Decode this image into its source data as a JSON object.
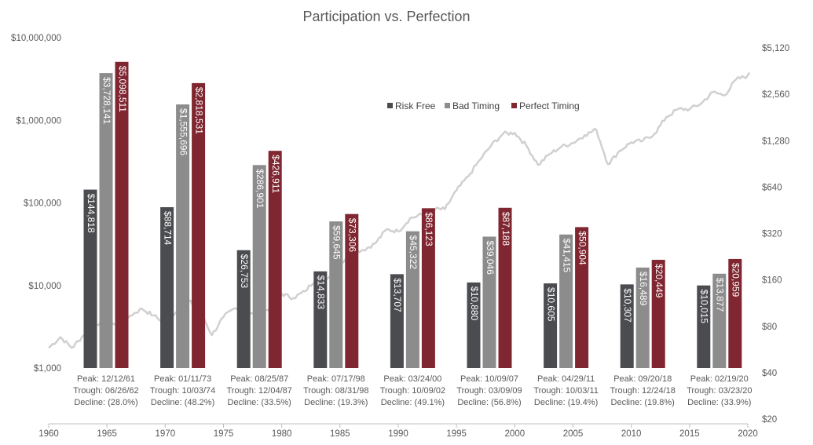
{
  "chart_data": {
    "type": "bar",
    "title": "Participation vs. Perfection",
    "colors": {
      "risk_free": "#4b4c50",
      "bad_timing": "#8c8c8c",
      "perfect_timing": "#7f2630",
      "line": "#d0d0d0"
    },
    "left_axis": {
      "scale": "log",
      "ticks": [
        "$1,000",
        "$10,000",
        "$100,000",
        "$1,000,000",
        "$10,000,000"
      ],
      "tick_values": [
        1000,
        10000,
        100000,
        1000000,
        10000000
      ],
      "ylim": [
        1000,
        10000000
      ]
    },
    "right_axis": {
      "scale": "log",
      "ticks": [
        "$20",
        "$40",
        "$80",
        "$160",
        "$320",
        "$640",
        "$1,280",
        "$2,560",
        "$5,120"
      ],
      "tick_values": [
        20,
        40,
        80,
        160,
        320,
        640,
        1280,
        2560,
        5120
      ],
      "ylim": [
        20,
        5120
      ]
    },
    "x_axis": {
      "ticks": [
        "1960",
        "1965",
        "1970",
        "1975",
        "1980",
        "1985",
        "1990",
        "1995",
        "2000",
        "2005",
        "2010",
        "2015",
        "2020"
      ],
      "range": [
        1960,
        2020
      ]
    },
    "legend": {
      "position": "top-right",
      "items": [
        "Risk Free",
        "Bad Timing",
        "Perfect Timing"
      ]
    },
    "groups": [
      {
        "peak": "Peak: 12/12/61",
        "trough": "Trough: 06/26/62",
        "decline": "Decline: (28.0%)",
        "risk_free": 144818,
        "bad_timing": 3728141,
        "perfect_timing": 5098511,
        "labels": [
          "$144,818",
          "$3,728,141",
          "$5,098,511"
        ]
      },
      {
        "peak": "Peak: 01/11/73",
        "trough": "Trough: 10/03/74",
        "decline": "Decline: (48.2%)",
        "risk_free": 88714,
        "bad_timing": 1555696,
        "perfect_timing": 2818531,
        "labels": [
          "$88,714",
          "$1,555,696",
          "$2,818,531"
        ]
      },
      {
        "peak": "Peak: 08/25/87",
        "trough": "Trough: 12/04/87",
        "decline": "Decline: (33.5%)",
        "risk_free": 26753,
        "bad_timing": 286901,
        "perfect_timing": 426911,
        "labels": [
          "$26,753",
          "$286,901",
          "$426,911"
        ]
      },
      {
        "peak": "Peak: 07/17/98",
        "trough": "Trough: 08/31/98",
        "decline": "Decline: (19.3%)",
        "risk_free": 14833,
        "bad_timing": 59645,
        "perfect_timing": 73306,
        "labels": [
          "$14,833",
          "$59,645",
          "$73,306"
        ]
      },
      {
        "peak": "Peak: 03/24/00",
        "trough": "Trough: 10/09/02",
        "decline": "Decline: (49.1%)",
        "risk_free": 13707,
        "bad_timing": 45322,
        "perfect_timing": 86123,
        "labels": [
          "$13,707",
          "$45,322",
          "$86,123"
        ]
      },
      {
        "peak": "Peak: 10/09/07",
        "trough": "Trough: 03/09/09",
        "decline": "Decline: (56.8%)",
        "risk_free": 10880,
        "bad_timing": 39046,
        "perfect_timing": 87188,
        "labels": [
          "$10,880",
          "$39,046",
          "$87,188"
        ]
      },
      {
        "peak": "Peak: 04/29/11",
        "trough": "Trough: 10/03/11",
        "decline": "Decline: (19.4%)",
        "risk_free": 10605,
        "bad_timing": 41415,
        "perfect_timing": 50904,
        "labels": [
          "$10,605",
          "$41,415",
          "$50,904"
        ]
      },
      {
        "peak": "Peak: 09/20/18",
        "trough": "Trough: 12/24/18",
        "decline": "Decline: (19.8%)",
        "risk_free": 10307,
        "bad_timing": 16489,
        "perfect_timing": 20449,
        "labels": [
          "$10,307",
          "$16,489",
          "$20,449"
        ]
      },
      {
        "peak": "Peak: 02/19/20",
        "trough": "Trough: 03/23/20",
        "decline": "Decline: (33.9%)",
        "risk_free": 10015,
        "bad_timing": 13877,
        "perfect_timing": 20959,
        "labels": [
          "$10,015",
          "$13,877",
          "$20,959"
        ]
      }
    ],
    "line_series": {
      "years": [
        1960,
        1961,
        1962,
        1963,
        1964,
        1965,
        1966,
        1967,
        1968,
        1969,
        1970,
        1971,
        1972,
        1973,
        1974,
        1975,
        1976,
        1977,
        1978,
        1979,
        1980,
        1981,
        1982,
        1983,
        1984,
        1985,
        1986,
        1987,
        1988,
        1989,
        1990,
        1991,
        1992,
        1993,
        1994,
        1995,
        1996,
        1997,
        1998,
        1999,
        2000,
        2001,
        2002,
        2003,
        2004,
        2005,
        2006,
        2007,
        2008,
        2009,
        2010,
        2011,
        2012,
        2013,
        2014,
        2015,
        2016,
        2017,
        2018,
        2019,
        2020
      ],
      "values": [
        58,
        68,
        58,
        70,
        82,
        89,
        80,
        94,
        104,
        94,
        84,
        100,
        117,
        102,
        70,
        92,
        105,
        96,
        96,
        106,
        130,
        122,
        135,
        165,
        165,
        200,
        245,
        250,
        275,
        340,
        330,
        400,
        425,
        460,
        460,
        610,
        750,
        960,
        1200,
        1420,
        1440,
        1190,
        890,
        1050,
        1170,
        1240,
        1390,
        1510,
        900,
        1100,
        1250,
        1280,
        1420,
        1820,
        2050,
        2050,
        2230,
        2650,
        2520,
        3200,
        3370
      ]
    }
  }
}
